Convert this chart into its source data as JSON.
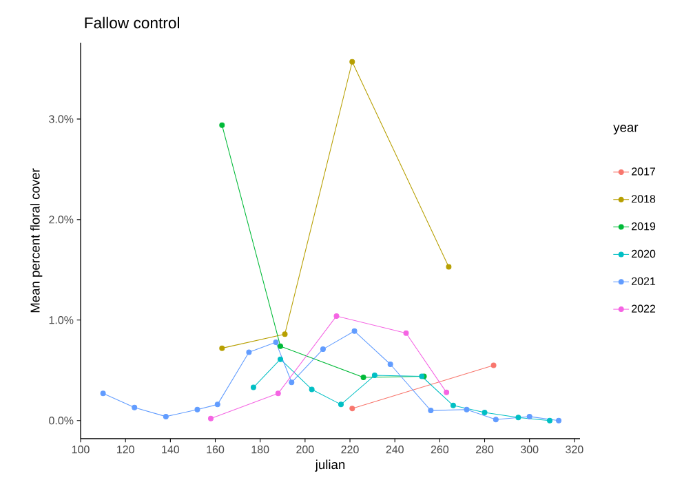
{
  "chart_data": {
    "type": "line",
    "title": "Fallow control",
    "xlabel": "julian",
    "ylabel": "Mean percent floral cover",
    "legend_title": "year",
    "series": [
      {
        "name": "2017",
        "color": "#f8766d",
        "x": [
          221,
          284
        ],
        "values": [
          0.12,
          0.55
        ]
      },
      {
        "name": "2018",
        "color": "#b79f00",
        "x": [
          163,
          191,
          221,
          264
        ],
        "values": [
          0.72,
          0.86,
          3.57,
          1.53
        ]
      },
      {
        "name": "2019",
        "color": "#00ba38",
        "x": [
          163,
          189,
          226,
          253
        ],
        "values": [
          2.94,
          0.74,
          0.43,
          0.44
        ]
      },
      {
        "name": "2020",
        "color": "#00bfc4",
        "x": [
          177,
          189,
          203,
          216,
          231,
          252,
          266,
          280,
          295,
          309
        ],
        "values": [
          0.33,
          0.61,
          0.31,
          0.16,
          0.45,
          0.44,
          0.15,
          0.08,
          0.03,
          0.0
        ]
      },
      {
        "name": "2021",
        "color": "#619cff",
        "x": [
          110,
          124,
          138,
          152,
          161,
          175,
          187,
          194,
          208,
          222,
          238,
          256,
          272,
          285,
          300,
          313
        ],
        "values": [
          0.27,
          0.13,
          0.04,
          0.11,
          0.16,
          0.68,
          0.78,
          0.38,
          0.71,
          0.89,
          0.56,
          0.1,
          0.11,
          0.01,
          0.04,
          0.0
        ]
      },
      {
        "name": "2022",
        "color": "#f564e3",
        "x": [
          158,
          188,
          214,
          245,
          263
        ],
        "values": [
          0.02,
          0.27,
          1.04,
          0.87,
          0.28
        ]
      }
    ],
    "xlim": [
      100,
      322.5
    ],
    "ylim": [
      -0.18,
      3.76
    ],
    "xticks": [
      100,
      120,
      140,
      160,
      180,
      200,
      220,
      240,
      260,
      280,
      300,
      320
    ],
    "yticks": [
      {
        "value": 0,
        "label": "0.0%"
      },
      {
        "value": 1,
        "label": "1.0%"
      },
      {
        "value": 2,
        "label": "2.0%"
      },
      {
        "value": 3,
        "label": "3.0%"
      }
    ],
    "legend": "right",
    "marker": "circle",
    "line_style": "solid"
  }
}
